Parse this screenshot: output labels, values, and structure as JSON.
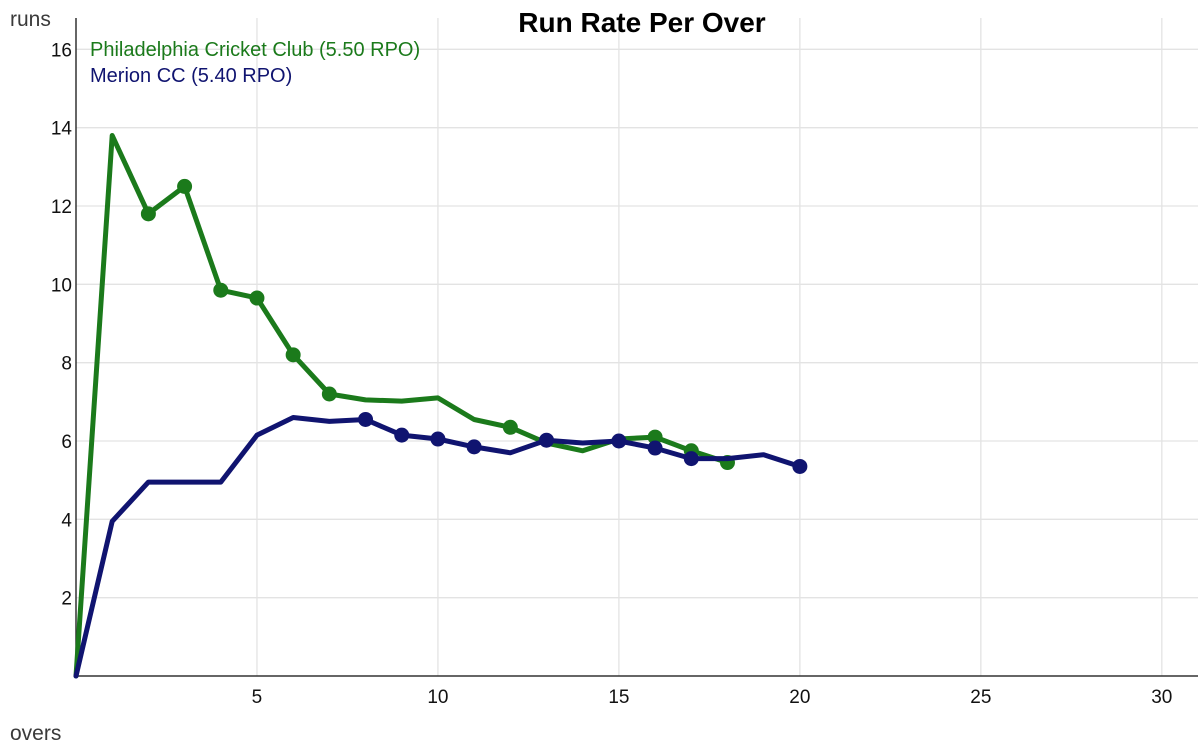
{
  "chart_data": {
    "type": "line",
    "title": "Run Rate Per Over",
    "xlabel": "overs",
    "ylabel": "runs",
    "xlim": [
      0,
      31
    ],
    "ylim": [
      0,
      16.8
    ],
    "xticks": [
      5,
      10,
      15,
      20,
      25,
      30
    ],
    "yticks": [
      2,
      4,
      6,
      8,
      10,
      12,
      14,
      16
    ],
    "grid": true,
    "legend_position": "top-left",
    "series": [
      {
        "name": "Philadelphia Cricket Club (5.50 RPO)",
        "color": "#1b7a1b",
        "x": [
          0,
          1,
          2,
          3,
          4,
          5,
          6,
          7,
          8,
          9,
          10,
          11,
          12,
          13,
          14,
          15,
          16,
          17,
          18
        ],
        "y": [
          0,
          13.8,
          11.8,
          12.5,
          9.85,
          9.65,
          8.2,
          7.2,
          7.05,
          7.02,
          7.1,
          6.55,
          6.35,
          5.95,
          5.75,
          6.05,
          6.1,
          5.75,
          5.45
        ],
        "markers": [
          2,
          3,
          4,
          5,
          6,
          7,
          12,
          16,
          17,
          18
        ]
      },
      {
        "name": "Merion CC (5.40 RPO)",
        "color": "#101470",
        "x": [
          0,
          1,
          2,
          3,
          4,
          5,
          6,
          7,
          8,
          9,
          10,
          11,
          12,
          13,
          14,
          15,
          16,
          17,
          18,
          19,
          20
        ],
        "y": [
          0,
          3.95,
          4.95,
          4.95,
          4.95,
          6.15,
          6.6,
          6.5,
          6.55,
          6.15,
          6.05,
          5.85,
          5.7,
          6.02,
          5.95,
          6.0,
          5.82,
          5.55,
          5.55,
          5.65,
          5.35
        ],
        "markers": [
          8,
          9,
          10,
          11,
          13,
          15,
          16,
          17,
          20
        ]
      }
    ]
  }
}
